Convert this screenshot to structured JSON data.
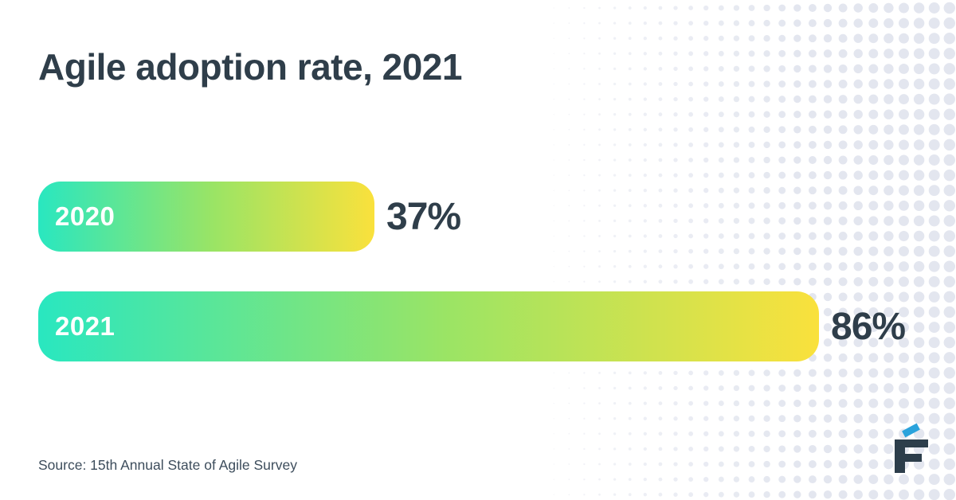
{
  "header": {
    "title": "Agile adoption rate, 2021"
  },
  "chart_data": {
    "type": "bar",
    "orientation": "horizontal",
    "title": "Agile adoption rate, 2021",
    "categories": [
      "2020",
      "2021"
    ],
    "values": [
      37,
      86
    ],
    "value_labels": [
      "37%",
      "86%"
    ],
    "xlim": [
      0,
      86
    ],
    "grid": false,
    "legend": false,
    "bar_gradient": [
      "#29e7c0",
      "#9ae465",
      "#fae13c"
    ]
  },
  "footer": {
    "source": "Source: 15th Annual State of Agile Survey"
  },
  "logo": {
    "name": "financesonline-logo",
    "letter": "F"
  },
  "colors": {
    "text_dark": "#2f3e4a",
    "source_text": "#3d4d5c",
    "dot": "#e3e6ef",
    "gradient_start": "#29e7c0",
    "gradient_mid": "#9ae465",
    "gradient_end": "#fae13c",
    "logo_navy": "#2d3e4b",
    "logo_blue": "#2aa3dc"
  }
}
